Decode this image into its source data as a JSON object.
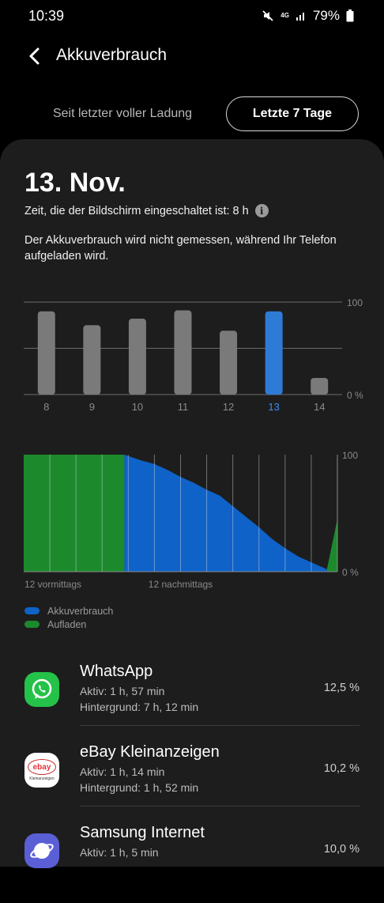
{
  "status": {
    "time": "10:39",
    "battery_pct": "79%",
    "network": "4G"
  },
  "header": {
    "title": "Akkuverbrauch"
  },
  "tabs": [
    {
      "label": "Seit letzter voller Ladung"
    },
    {
      "label": "Letzte 7 Tage"
    }
  ],
  "day": {
    "date": "13. Nov.",
    "screen_time": "Zeit, die der Bildschirm eingeschaltet ist: 8 h",
    "note": "Der Akkuverbrauch wird nicht gemessen, während Ihr Telefon aufgeladen wird."
  },
  "chart_data": [
    {
      "type": "bar",
      "categories": [
        "8",
        "9",
        "10",
        "11",
        "12",
        "13",
        "14"
      ],
      "values": [
        90,
        75,
        82,
        91,
        69,
        90,
        18
      ],
      "selected": "13",
      "ylim": [
        0,
        100
      ],
      "y_ticks": [
        "100",
        "0 %"
      ],
      "colors": {
        "bar": "#7a7a7a",
        "selected": "#2e7bd6"
      }
    },
    {
      "type": "area",
      "x_labels": [
        "12 vormittags",
        "12 nachmittags"
      ],
      "y_ticks": [
        "100",
        "0 %"
      ],
      "ylim": [
        0,
        100
      ],
      "series": [
        {
          "name": "Akkuverbrauch",
          "color": "#0f62c8",
          "x": [
            7.7,
            9,
            10,
            11,
            12,
            13,
            14,
            15,
            16,
            17,
            18,
            19,
            20,
            21,
            22,
            23,
            23.2
          ],
          "values": [
            100,
            95,
            92,
            87,
            81,
            76,
            70,
            65,
            56,
            47,
            38,
            28,
            20,
            13,
            8,
            3,
            2
          ]
        },
        {
          "name": "Aufladen",
          "color": "#1c8a2c",
          "x": [
            0,
            7.7,
            23.2,
            24
          ],
          "values": [
            100,
            100,
            2,
            45
          ]
        }
      ]
    }
  ],
  "legend": [
    {
      "label": "Akkuverbrauch",
      "color": "#0f62c8"
    },
    {
      "label": "Aufladen",
      "color": "#1c8a2c"
    }
  ],
  "apps": [
    {
      "name": "WhatsApp",
      "active": "Aktiv: 1 h, 57 min",
      "background": "Hintergrund: 7 h, 12 min",
      "percent": "12,5 %",
      "icon": "whatsapp-icon"
    },
    {
      "name": "eBay Kleinanzeigen",
      "active": "Aktiv: 1 h, 14 min",
      "background": "Hintergrund: 1 h, 52 min",
      "percent": "10,2 %",
      "icon": "ebay-kleinanzeigen-icon",
      "icon_text": "ebay",
      "icon_subtext": "Kleinanzeigen"
    },
    {
      "name": "Samsung Internet",
      "active": "Aktiv: 1 h, 5 min",
      "background": "",
      "percent": "10,0 %",
      "icon": "samsung-internet-icon"
    }
  ]
}
